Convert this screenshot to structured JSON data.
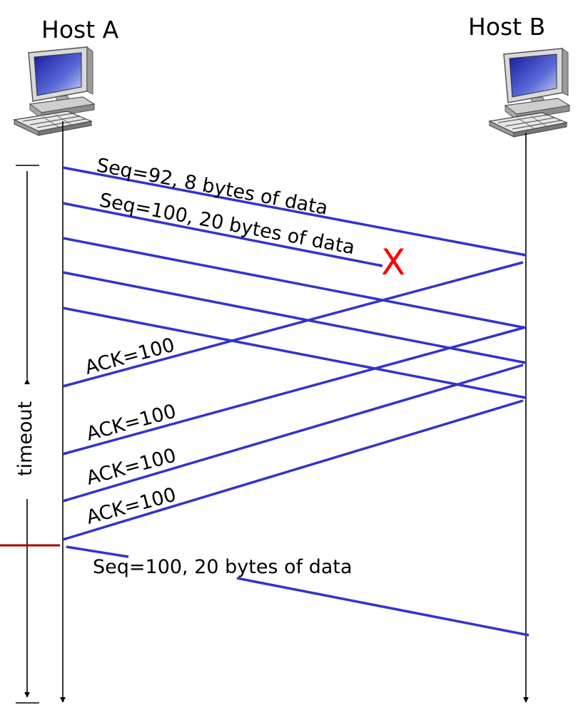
{
  "hosts": {
    "a": {
      "label": "Host A"
    },
    "b": {
      "label": "Host B"
    }
  },
  "segments": {
    "seq92": "Seq=92, 8 bytes of data",
    "seq100": "Seq=100, 20 bytes of data",
    "retransmit": "Seq=100, 20 bytes of data"
  },
  "acks": [
    "ACK=100",
    "ACK=100",
    "ACK=100",
    "ACK=100"
  ],
  "timer": {
    "label": "timeout"
  },
  "loss_marker": "X",
  "colors": {
    "arrow": "#3333cc",
    "loss": "#ff0000",
    "timeout_marker": "#aa0000",
    "timeline": "#000000"
  }
}
